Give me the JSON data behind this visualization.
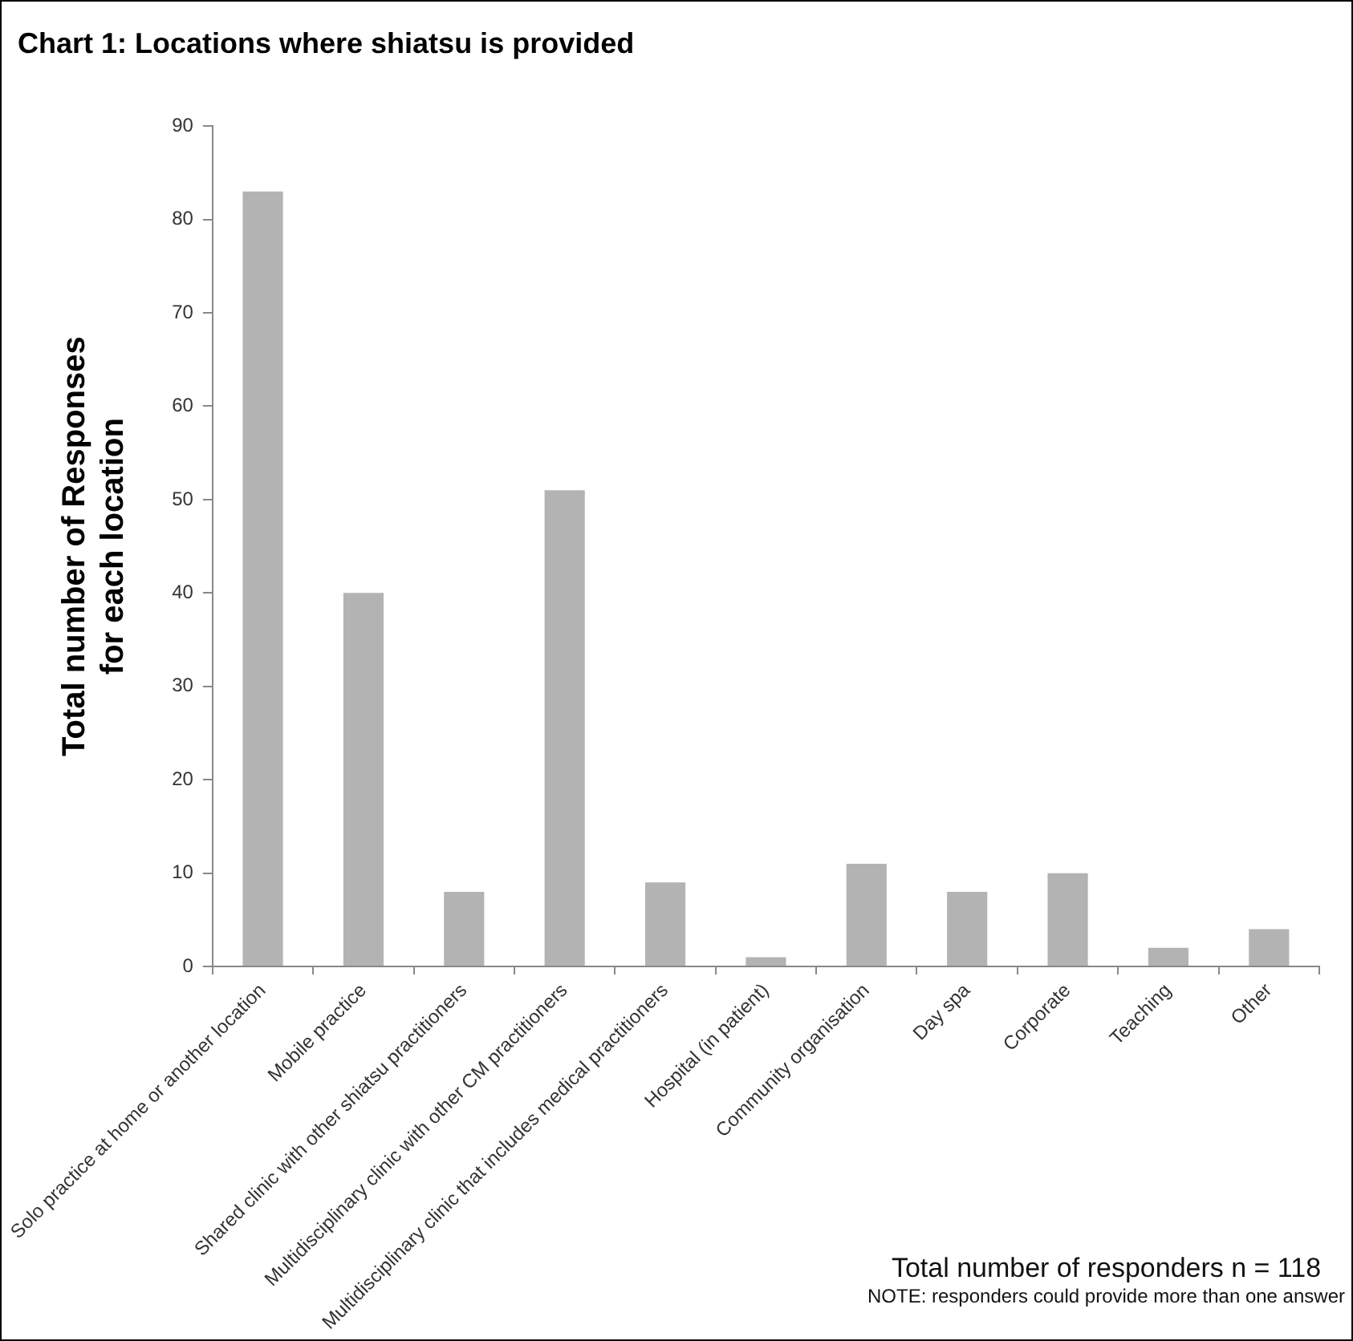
{
  "chart_data": {
    "type": "bar",
    "title": "Chart 1: Locations where shiatsu is provided",
    "ylabel": "Total number of Responses\nfor each location",
    "categories": [
      "Solo practice at home or another location",
      "Mobile practice",
      "Shared clinic with other shiatsu practitioners",
      "Multidisciplinary clinic with other CM practitioners",
      "Multidisciplinary clinic that includes medical practitioners",
      "Hospital (in patient)",
      "Community organisation",
      "Day spa",
      "Corporate",
      "Teaching",
      "Other"
    ],
    "values": [
      83,
      40,
      8,
      51,
      9,
      1,
      11,
      8,
      10,
      2,
      4
    ],
    "color": "#b3b3b3",
    "ylim": [
      0,
      90
    ],
    "yticks": [
      0,
      10,
      20,
      30,
      40,
      50,
      60,
      70,
      80,
      90
    ],
    "grid": false,
    "legend": false,
    "annotations": [
      "Total number of responders n = 118",
      "NOTE: responders could provide more than one answer"
    ]
  }
}
